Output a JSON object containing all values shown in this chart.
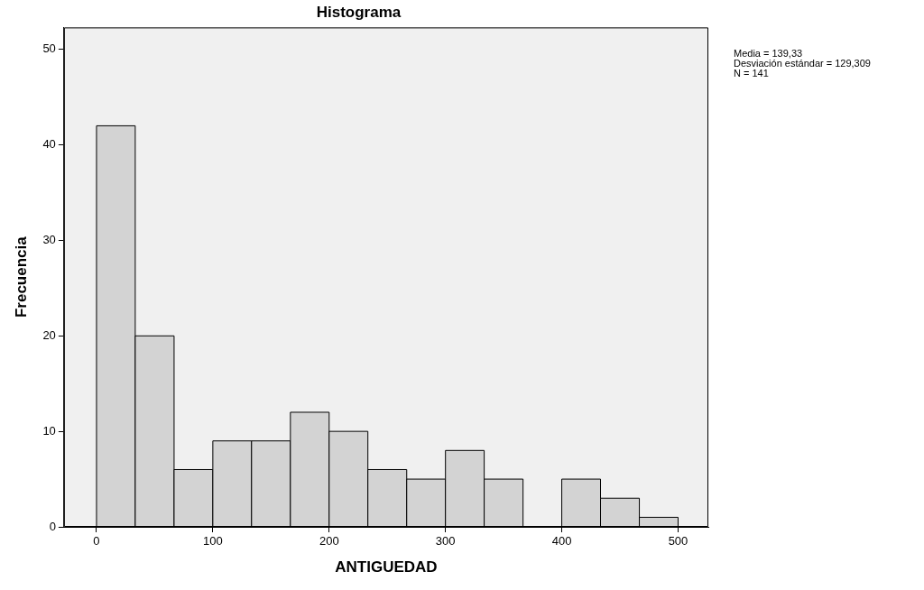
{
  "chart_data": {
    "type": "histogram",
    "title": "Histograma",
    "xlabel": "ANTIGUEDAD",
    "ylabel": "Frecuencia",
    "bins": [
      0,
      33.3,
      66.7,
      100,
      133.3,
      166.7,
      200,
      233.3,
      266.7,
      300,
      333.3,
      366.7,
      400,
      433.3,
      466.7,
      500
    ],
    "values": [
      42,
      20,
      6,
      9,
      9,
      12,
      10,
      6,
      5,
      8,
      5,
      0,
      5,
      3,
      1
    ],
    "color": "#d3d3d3",
    "xlim": [
      -28,
      526
    ],
    "xticks": [
      0,
      100,
      200,
      300,
      400,
      500
    ],
    "ylim": [
      0,
      52.3
    ],
    "yticks": [
      0,
      10,
      20,
      30,
      40,
      50
    ],
    "grid": false,
    "legend": false,
    "annotations": [
      "Media = 139,33",
      "Desviación estándar = 129,309",
      "N = 141"
    ]
  }
}
